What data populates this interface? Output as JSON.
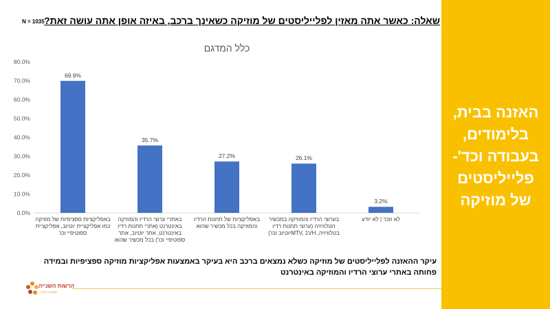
{
  "header": {
    "question": "שאלה: כאשר אתה מאזין לפלייליסטים של מוזיקה כשאינך ברכב, באיזה אופן אתה עושה זאת?",
    "sample_size": "N = 1035"
  },
  "side_panel": {
    "text": "האזנה בבית, בלימודים, בעבודה וכד'- פלייליסטים של מוזיקה",
    "color": "#f9c000"
  },
  "conclusion": "עיקר ההאזנה לפלייליסטים של מוזיקה כשלא נמצאים ברכב היא בעיקר באמצעות אפליקציות מוזיקה ספציפיות ובמידה פחותה באתרי ערוצי הרדיו והמוזיקה באינטרנט",
  "logo": {
    "name": "הרשות השנייה",
    "subtitle": "לטלוויזיה ולרדיו"
  },
  "chart_data": {
    "type": "bar",
    "title": "כלל המדגם",
    "categories": [
      "באפליקציות ספציפיות של מוזיקה כמו אפליקציית יוטיוב, אפליקציית ספוטיפיי וכו'",
      "באתרי ערוצי הרדיו והמוזיקה באינטרנט (אתרי תחנות רדיו באינטרנט, אתר יוטיוב, אתר ספוטיפיי וכו') בכל מכשיר שהוא",
      "באפליקציות של תחנות הרדיו והמוזיקה בכל מכשיר שהוא",
      "בערוצי הרדיו והמוזיקה במכשיר הטלוויזיה (ערוצי תחנות רדיו בטלוויזיה, MTV, 1VHיוטיוב וכו')",
      "לא זוכר | לא יודע"
    ],
    "values": [
      69.9,
      35.7,
      27.2,
      26.1,
      3.2
    ],
    "value_labels": [
      "69.9%",
      "35.7%",
      "27.2%",
      "26.1%",
      "3.2%"
    ],
    "y_ticks": [
      "0.0%",
      "10.0%",
      "20.0%",
      "30.0%",
      "40.0%",
      "50.0%",
      "60.0%",
      "70.0%",
      "80.0%"
    ],
    "ylim": [
      0,
      80
    ],
    "grid": false,
    "bar_color": "#4472c4"
  }
}
